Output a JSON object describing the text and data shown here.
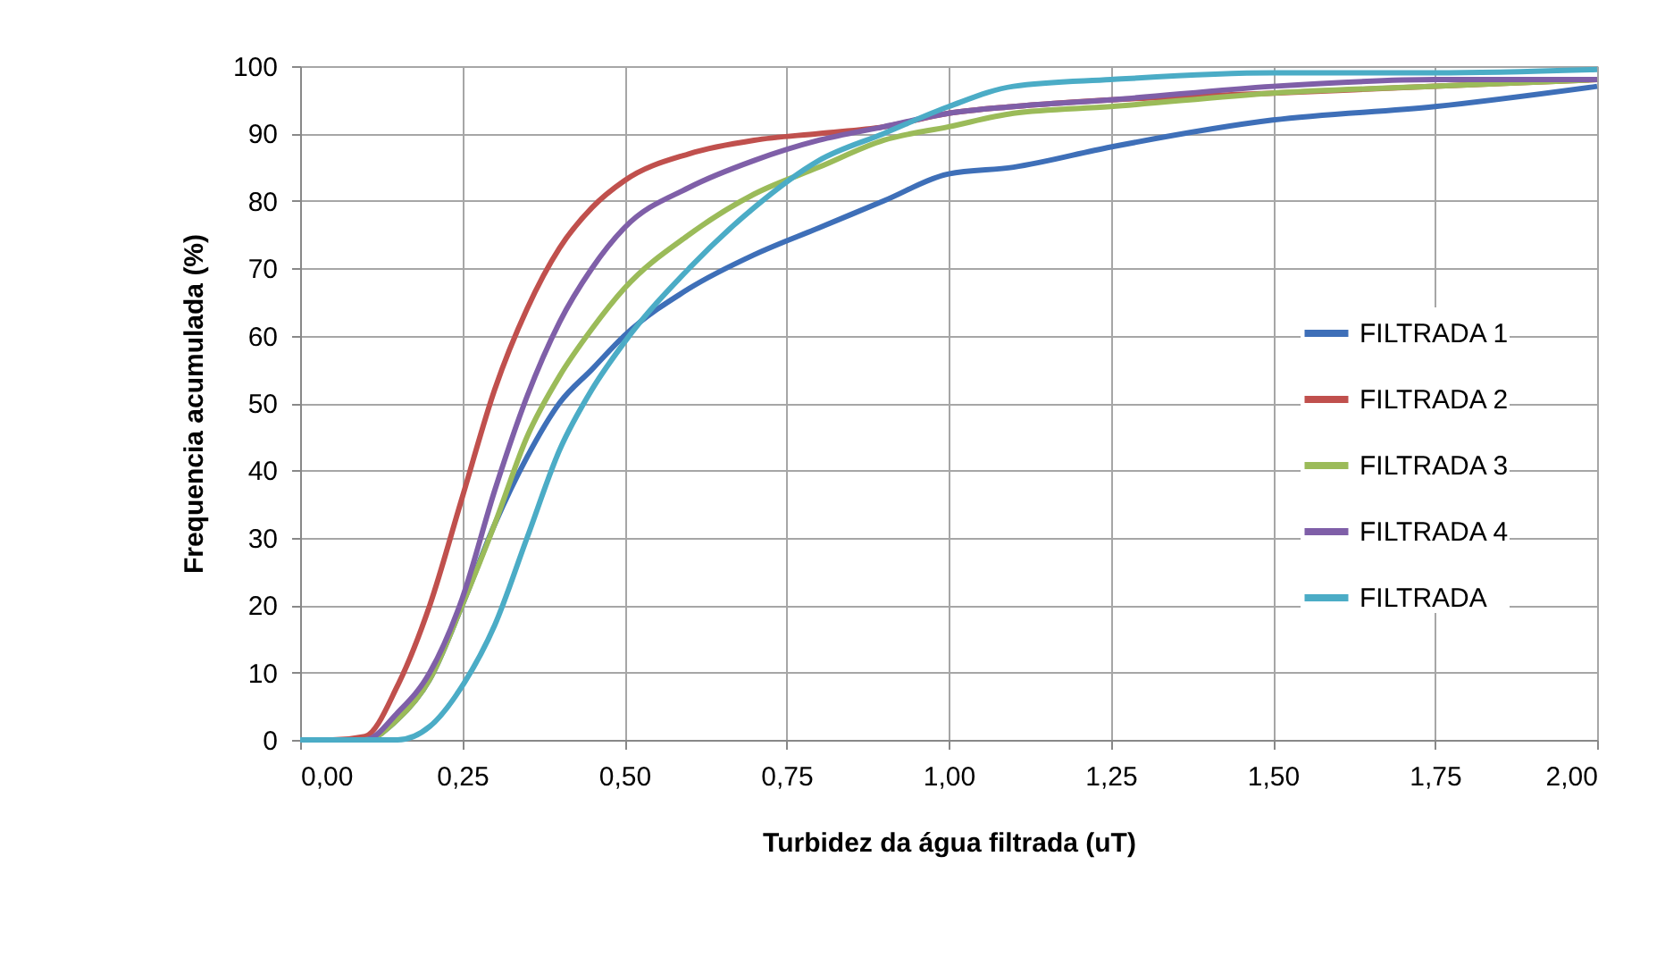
{
  "chart_data": {
    "type": "line",
    "xlabel": "Turbidez da água filtrada (uT)",
    "ylabel": "Frequencia acumulada (%)",
    "x": [
      0,
      0.05,
      0.1,
      0.15,
      0.2,
      0.25,
      0.3,
      0.35,
      0.4,
      0.45,
      0.5,
      0.6,
      0.7,
      0.8,
      0.9,
      1.0,
      1.1,
      1.25,
      1.5,
      1.75,
      2.0
    ],
    "series": [
      {
        "name": "FILTRADA 1",
        "color": "#3e6fb8",
        "values": [
          0,
          0,
          0,
          3,
          9,
          20,
          32,
          42,
          50,
          55,
          60,
          67,
          72,
          76,
          80,
          84,
          85,
          88,
          92,
          94,
          97
        ]
      },
      {
        "name": "FILTRADA 2",
        "color": "#c0504d",
        "values": [
          0,
          0,
          0.5,
          8,
          20,
          36,
          52,
          64,
          73,
          79,
          83,
          87,
          89,
          90,
          91,
          93,
          94,
          95,
          96,
          97,
          98
        ]
      },
      {
        "name": "FILTRADA 3",
        "color": "#9bbb59",
        "values": [
          0,
          0,
          0,
          3,
          9,
          20,
          32,
          45,
          54,
          61,
          67,
          75,
          81,
          85,
          89,
          91,
          93,
          94,
          96,
          97,
          98
        ]
      },
      {
        "name": "FILTRADA 4",
        "color": "#7f5fa8",
        "values": [
          0,
          0,
          0,
          4,
          10,
          21,
          37,
          51,
          62,
          70,
          76,
          82,
          86,
          89,
          91,
          93,
          94,
          95,
          97,
          98,
          98
        ]
      },
      {
        "name": "FILTRADA",
        "color": "#4bacc6",
        "values": [
          0,
          0,
          0,
          0,
          2,
          8,
          17,
          30,
          43,
          52,
          59,
          70,
          79,
          86,
          90,
          94,
          97,
          98,
          99,
          99,
          99.5
        ]
      }
    ],
    "xlim": [
      0,
      2
    ],
    "ylim": [
      0,
      100
    ],
    "xticks": [
      {
        "value": 0,
        "label": "0,00"
      },
      {
        "value": 0.25,
        "label": "0,25"
      },
      {
        "value": 0.5,
        "label": "0,50"
      },
      {
        "value": 0.75,
        "label": "0,75"
      },
      {
        "value": 1,
        "label": "1,00"
      },
      {
        "value": 1.25,
        "label": "1,25"
      },
      {
        "value": 1.5,
        "label": "1,50"
      },
      {
        "value": 1.75,
        "label": "1,75"
      },
      {
        "value": 2,
        "label": "2,00"
      }
    ],
    "yticks": [
      0,
      10,
      20,
      30,
      40,
      50,
      60,
      70,
      80,
      90,
      100
    ],
    "grid": true,
    "legend": "right",
    "marker": "none",
    "line_style": "solid"
  }
}
